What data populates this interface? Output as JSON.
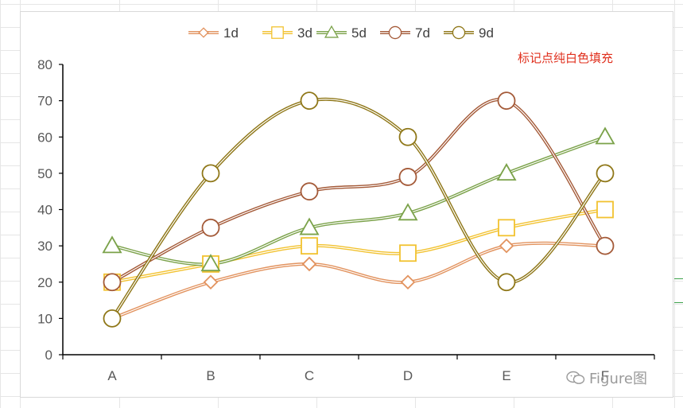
{
  "annotation": "标记点纯白色填充",
  "watermark": {
    "text": "Figure图",
    "icon": "wechat-icon"
  },
  "colors": {
    "background": "#ffffff",
    "grid": "#e6e6e6",
    "axis": "#000000"
  },
  "chart_data": {
    "type": "line",
    "smooth": true,
    "marker_fill": "#ffffff",
    "categories": [
      "A",
      "B",
      "C",
      "D",
      "E",
      "F"
    ],
    "ylim": [
      0,
      80
    ],
    "yticks": [
      0,
      10,
      20,
      30,
      40,
      50,
      60,
      70,
      80
    ],
    "grid": false,
    "legend_position": "top",
    "series": [
      {
        "name": "1d",
        "values": [
          10,
          20,
          25,
          20,
          30,
          30
        ],
        "color": "#e2935f",
        "marker": "diamond"
      },
      {
        "name": "3d",
        "values": [
          20,
          25,
          30,
          28,
          35,
          40
        ],
        "color": "#f2c230",
        "marker": "square"
      },
      {
        "name": "5d",
        "values": [
          30,
          25,
          35,
          39,
          50,
          60
        ],
        "color": "#7ba24a",
        "marker": "triangle"
      },
      {
        "name": "7d",
        "values": [
          20,
          35,
          45,
          49,
          70,
          30
        ],
        "color": "#a45a38",
        "marker": "circle"
      },
      {
        "name": "9d",
        "values": [
          10,
          50,
          70,
          60,
          20,
          50
        ],
        "color": "#8f7718",
        "marker": "circle"
      }
    ]
  }
}
